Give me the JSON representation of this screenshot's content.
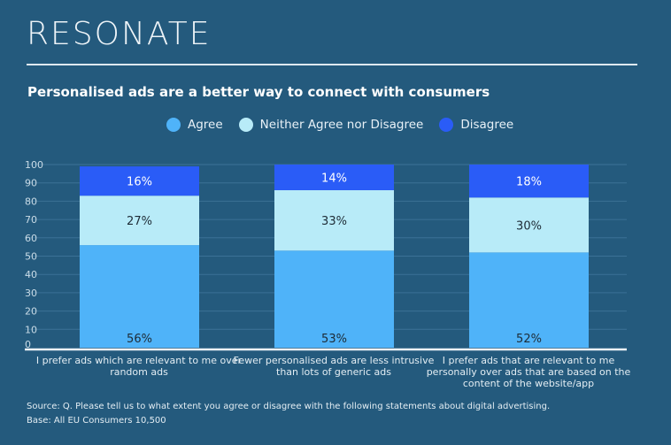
{
  "brand": "RESONATE",
  "chart_data": {
    "type": "bar",
    "stacked": true,
    "title": "Personalised ads are a better way to connect with consumers",
    "categories": [
      "I prefer ads which are relevant to me over random ads",
      "Fewer personalised ads are less intrusive than lots of generic ads",
      "I prefer ads that are relevant to me personally over ads that are based on the content of the website/app"
    ],
    "series": [
      {
        "name": "Agree",
        "values": [
          56,
          53,
          52
        ],
        "labels": [
          "56%",
          "53%",
          "52%"
        ],
        "color": "#4fb3f9"
      },
      {
        "name": "Neither Agree nor Disagree",
        "values": [
          27,
          33,
          30
        ],
        "labels": [
          "27%",
          "33%",
          "30%"
        ],
        "color": "#b8ebf8"
      },
      {
        "name": "Disagree",
        "values": [
          16,
          14,
          18
        ],
        "labels": [
          "16%",
          "14%",
          "18%"
        ],
        "color": "#2a5cf7"
      }
    ],
    "ylim": [
      0,
      100
    ],
    "yticks": [
      "0",
      "10",
      "20",
      "30",
      "40",
      "50",
      "60",
      "70",
      "80",
      "90",
      "100"
    ],
    "grid": true,
    "legend": "top"
  },
  "footer": {
    "source": "Source: Q. Please tell us to what extent you agree or disagree with the following statements about digital advertising.",
    "base": "Base: All EU Consumers 10,500"
  }
}
